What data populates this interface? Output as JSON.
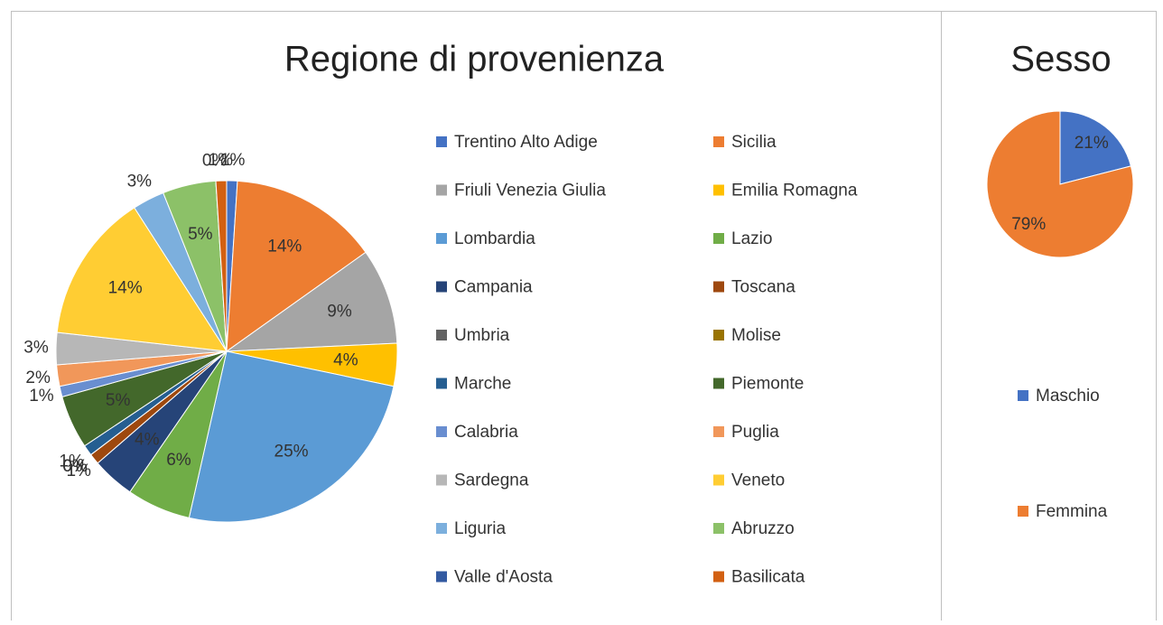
{
  "chart_data": [
    {
      "type": "pie",
      "title": "Regione di provenienza",
      "categories": [
        "Trentino Alto Adige",
        "Sicilia",
        "Friuli Venezia Giulia",
        "Emilia Romagna",
        "Lombardia",
        "Lazio",
        "Campania",
        "Toscana",
        "Umbria",
        "Molise",
        "Marche",
        "Piemonte",
        "Calabria",
        "Puglia",
        "Sardegna",
        "Veneto",
        "Liguria",
        "Abruzzo",
        "Valle d'Aosta",
        "Basilicata"
      ],
      "values": [
        1,
        14,
        9,
        4,
        25,
        6,
        4,
        1,
        0,
        0,
        1,
        5,
        1,
        2,
        3,
        14,
        3,
        5,
        0,
        1
      ],
      "value_labels": [
        "1%",
        "14%",
        "9%",
        "4%",
        "25%",
        "6%",
        "4%",
        "1%",
        "0%",
        "0%",
        "1%",
        "5%",
        "1%",
        "2%",
        "3%",
        "14%",
        "3%",
        "5%",
        "0%",
        "1%"
      ],
      "colors": [
        "#4472c4",
        "#ed7d31",
        "#a5a5a5",
        "#ffc000",
        "#5b9bd5",
        "#70ad47",
        "#264478",
        "#9e480e",
        "#636363",
        "#997300",
        "#255e91",
        "#43682b",
        "#698ed0",
        "#f1975a",
        "#b7b7b7",
        "#ffcd33",
        "#7cafdd",
        "#8cc168",
        "#335aa1",
        "#d26012"
      ]
    },
    {
      "type": "pie",
      "title": "Sesso",
      "categories": [
        "Maschio",
        "Femmina"
      ],
      "values": [
        21,
        79
      ],
      "value_labels": [
        "21%",
        "79%"
      ],
      "colors": [
        "#4472c4",
        "#ed7d31"
      ]
    }
  ]
}
